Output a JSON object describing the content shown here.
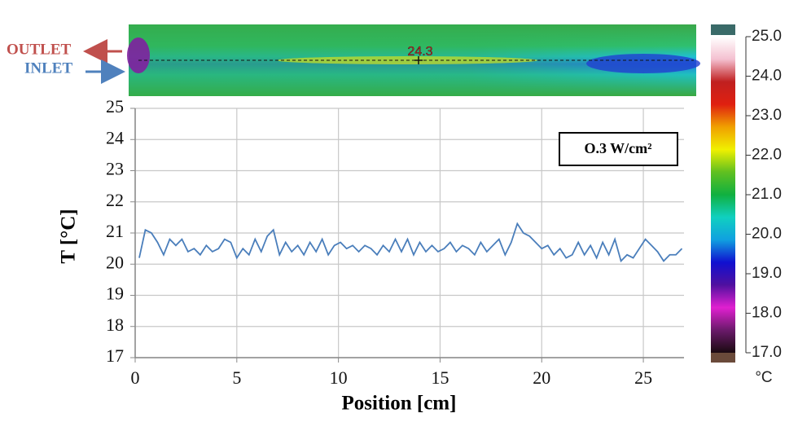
{
  "chart_data": {
    "type": "line",
    "x_label": "Position [cm]",
    "y_label": "T [°C]",
    "annotation": "O.3 W/cm²",
    "xlim": [
      0,
      27
    ],
    "ylim": [
      17,
      25
    ],
    "xticks": [
      0,
      5,
      10,
      15,
      20,
      25
    ],
    "yticks": [
      17,
      18,
      19,
      20,
      21,
      22,
      23,
      24,
      25
    ],
    "grid": true,
    "series": [
      {
        "color": "#4a7ebb",
        "x": [
          0.2,
          0.5,
          0.8,
          1.1,
          1.4,
          1.7,
          2.0,
          2.3,
          2.6,
          2.9,
          3.2,
          3.5,
          3.8,
          4.1,
          4.4,
          4.7,
          5.0,
          5.3,
          5.6,
          5.9,
          6.2,
          6.5,
          6.8,
          7.1,
          7.4,
          7.7,
          8.0,
          8.3,
          8.6,
          8.9,
          9.2,
          9.5,
          9.8,
          10.1,
          10.4,
          10.7,
          11.0,
          11.3,
          11.6,
          11.9,
          12.2,
          12.5,
          12.8,
          13.1,
          13.4,
          13.7,
          14.0,
          14.3,
          14.6,
          14.9,
          15.2,
          15.5,
          15.8,
          16.1,
          16.4,
          16.7,
          17.0,
          17.3,
          17.6,
          17.9,
          18.2,
          18.5,
          18.8,
          19.1,
          19.4,
          19.7,
          20.0,
          20.3,
          20.6,
          20.9,
          21.2,
          21.5,
          21.8,
          22.1,
          22.4,
          22.7,
          23.0,
          23.3,
          23.6,
          23.9,
          24.2,
          24.5,
          24.8,
          25.1,
          25.4,
          25.7,
          26.0,
          26.3,
          26.6,
          26.9
        ],
        "values": [
          20.2,
          21.1,
          21.0,
          20.7,
          20.3,
          20.8,
          20.6,
          20.8,
          20.4,
          20.5,
          20.3,
          20.6,
          20.4,
          20.5,
          20.8,
          20.7,
          20.2,
          20.5,
          20.3,
          20.8,
          20.4,
          20.9,
          21.1,
          20.3,
          20.7,
          20.4,
          20.6,
          20.3,
          20.7,
          20.4,
          20.8,
          20.3,
          20.6,
          20.7,
          20.5,
          20.6,
          20.4,
          20.6,
          20.5,
          20.3,
          20.6,
          20.4,
          20.8,
          20.4,
          20.8,
          20.3,
          20.7,
          20.4,
          20.6,
          20.4,
          20.5,
          20.7,
          20.4,
          20.6,
          20.5,
          20.3,
          20.7,
          20.4,
          20.6,
          20.8,
          20.3,
          20.7,
          21.3,
          21.0,
          20.9,
          20.7,
          20.5,
          20.6,
          20.3,
          20.5,
          20.2,
          20.3,
          20.7,
          20.3,
          20.6,
          20.2,
          20.7,
          20.3,
          20.8,
          20.1,
          20.3,
          20.2,
          20.5,
          20.8,
          20.6,
          20.4,
          20.1,
          20.3,
          20.3,
          20.5
        ]
      }
    ],
    "colorbar": {
      "unit": "°C",
      "clim": [
        17,
        25
      ],
      "ticks": [
        {
          "value": 25,
          "label": "25.0"
        },
        {
          "value": 24,
          "label": "24.0"
        },
        {
          "value": 23,
          "label": "23.0"
        },
        {
          "value": 22,
          "label": "22.0"
        },
        {
          "value": 21,
          "label": "21.0"
        },
        {
          "value": 20,
          "label": "20.0"
        },
        {
          "value": 19,
          "label": "19.0"
        },
        {
          "value": 18,
          "label": "18.0"
        },
        {
          "value": 17,
          "label": "17.0"
        }
      ],
      "colors": [
        "#1a0a10",
        "#6a1a6a",
        "#e020d0",
        "#5010a0",
        "#1010d0",
        "#10a0e0",
        "#10d0c0",
        "#10b040",
        "#60c020",
        "#f0f000",
        "#f0a000",
        "#e02010",
        "#c02020",
        "#f4c0d0",
        "#ffffff"
      ]
    },
    "image_labels": {
      "outlet": "OUTLET",
      "inlet": "INLET",
      "spot": 24.3
    }
  }
}
